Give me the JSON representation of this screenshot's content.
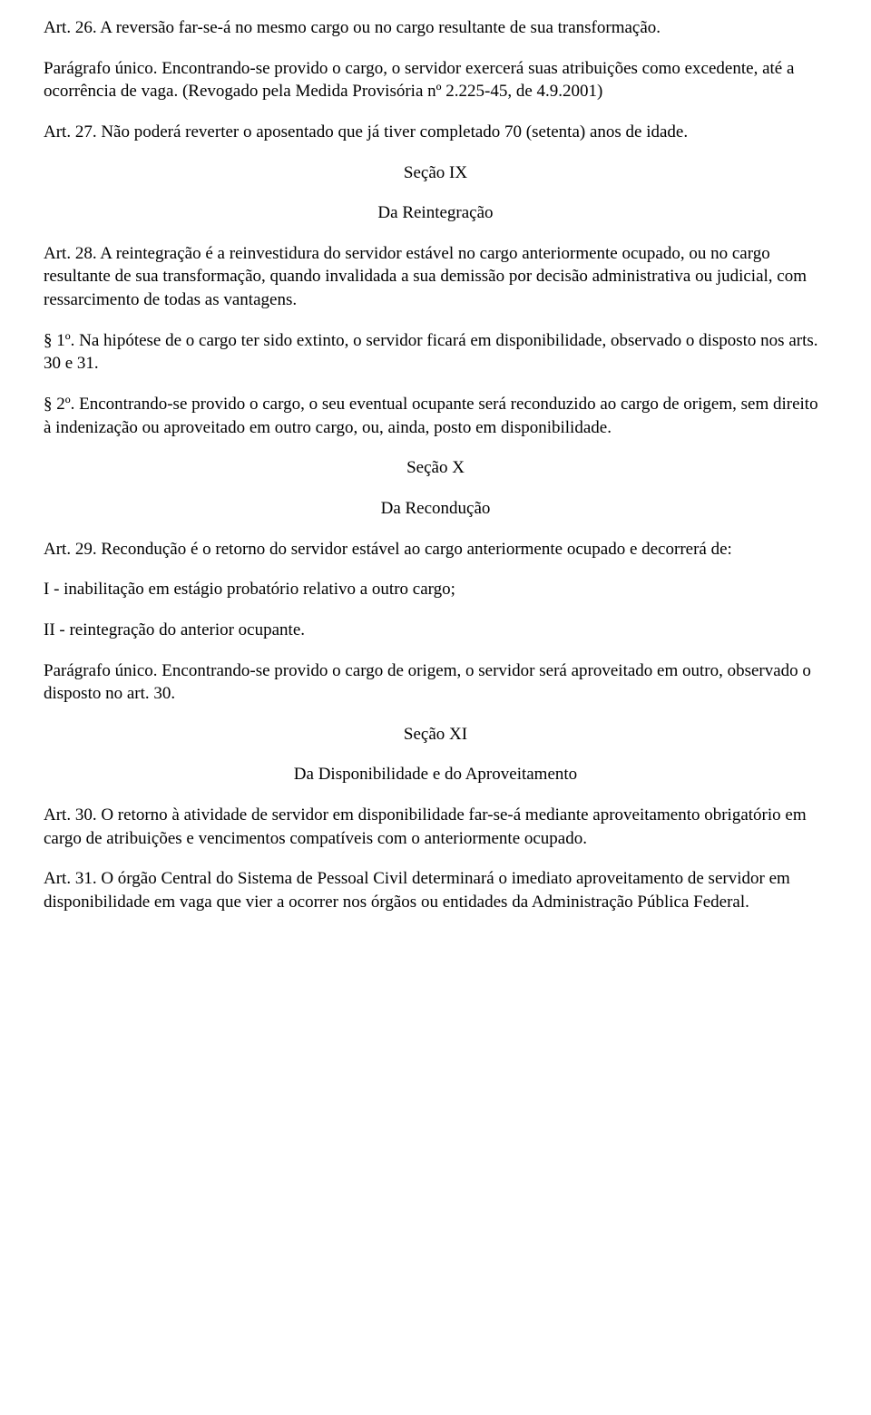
{
  "art26": "Art. 26. A reversão far-se-á no mesmo cargo ou no cargo resultante de sua transformação.",
  "art26_pu": "Parágrafo único. Encontrando-se provido o cargo, o servidor exercerá suas atribuições como excedente, até a ocorrência de vaga. (Revogado pela Medida Provisória nº 2.225-45, de 4.9.2001)",
  "art27": "Art. 27. Não poderá reverter o aposentado que já tiver completado 70 (setenta) anos de idade.",
  "secIX": "Seção IX",
  "secIX_title": "Da Reintegração",
  "art28": "Art. 28. A reintegração é a reinvestidura do servidor estável no cargo anteriormente ocupado, ou no cargo resultante de sua transformação, quando invalidada a sua demissão por decisão administrativa ou judicial, com ressarcimento de todas as vantagens.",
  "art28_p1": "§ 1º. Na hipótese de o cargo ter sido extinto, o servidor ficará em disponibilidade, observado o disposto nos arts. 30 e 31.",
  "art28_p2": "§ 2º. Encontrando-se provido o cargo, o seu eventual ocupante será reconduzido ao cargo de origem, sem direito à indenização ou aproveitado em outro cargo, ou, ainda, posto em disponibilidade.",
  "secX": "Seção X",
  "secX_title": "Da Recondução",
  "art29": "Art. 29. Recondução é o retorno do servidor estável ao cargo anteriormente ocupado e decorrerá de:",
  "art29_i": "I - inabilitação em estágio probatório relativo a outro cargo;",
  "art29_ii": "II - reintegração do anterior ocupante.",
  "art29_pu": "Parágrafo único. Encontrando-se provido o cargo de origem, o servidor será aproveitado em outro, observado o disposto no art. 30.",
  "secXI": "Seção XI",
  "secXI_title": "Da Disponibilidade e do Aproveitamento",
  "art30": "Art. 30. O retorno à atividade de servidor em disponibilidade far-se-á mediante aproveitamento obrigatório em cargo de atribuições e vencimentos compatíveis com o anteriormente ocupado.",
  "art31": "Art. 31. O órgão Central do Sistema de Pessoal Civil determinará o imediato aproveitamento de servidor em disponibilidade em vaga que vier a ocorrer nos órgãos ou entidades da Administração Pública Federal."
}
